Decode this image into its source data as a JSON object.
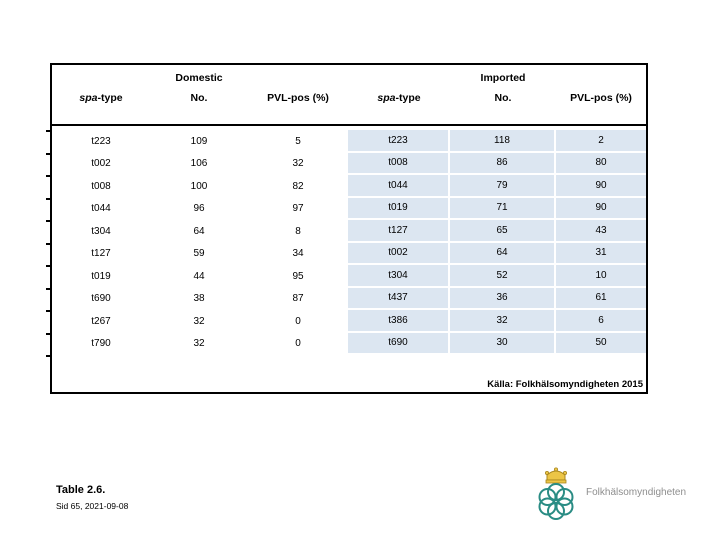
{
  "table": {
    "group_headers": [
      "Domestic",
      "Imported"
    ],
    "column_headers": [
      {
        "italic": "spa",
        "rest": "-type"
      },
      {
        "label": "No."
      },
      {
        "label": "PVL-pos (%)"
      },
      {
        "italic": "spa",
        "rest": "-type"
      },
      {
        "label": "No."
      },
      {
        "label": "PVL-pos (%)"
      }
    ],
    "domestic_rows": [
      [
        "t223",
        "109",
        "5"
      ],
      [
        "t002",
        "106",
        "32"
      ],
      [
        "t008",
        "100",
        "82"
      ],
      [
        "t044",
        "96",
        "97"
      ],
      [
        "t304",
        "64",
        "8"
      ],
      [
        "t127",
        "59",
        "34"
      ],
      [
        "t019",
        "44",
        "95"
      ],
      [
        "t690",
        "38",
        "87"
      ],
      [
        "t267",
        "32",
        "0"
      ],
      [
        "t790",
        "32",
        "0"
      ]
    ],
    "imported_rows": [
      [
        "t223",
        "118",
        "2"
      ],
      [
        "t008",
        "86",
        "80"
      ],
      [
        "t044",
        "79",
        "90"
      ],
      [
        "t019",
        "71",
        "90"
      ],
      [
        "t127",
        "65",
        "43"
      ],
      [
        "t002",
        "64",
        "31"
      ],
      [
        "t304",
        "52",
        "10"
      ],
      [
        "t437",
        "36",
        "61"
      ],
      [
        "t386",
        "32",
        "6"
      ],
      [
        "t690",
        "30",
        "50"
      ]
    ],
    "source_note": "Källa: Folkhälsomyndigheten 2015"
  },
  "footer": {
    "table_label": "Table 2.6.",
    "page_info": "Sid 65, 2021-09-08"
  },
  "logo": {
    "text": "Folkhälsomyndigheten"
  },
  "colors": {
    "imported_cell_bg": "#dce6f1",
    "table_border": "#000000",
    "logo_teal": "#2a8c84",
    "logo_gold": "#ecc546",
    "logo_text_gray": "#8e8e8e"
  }
}
